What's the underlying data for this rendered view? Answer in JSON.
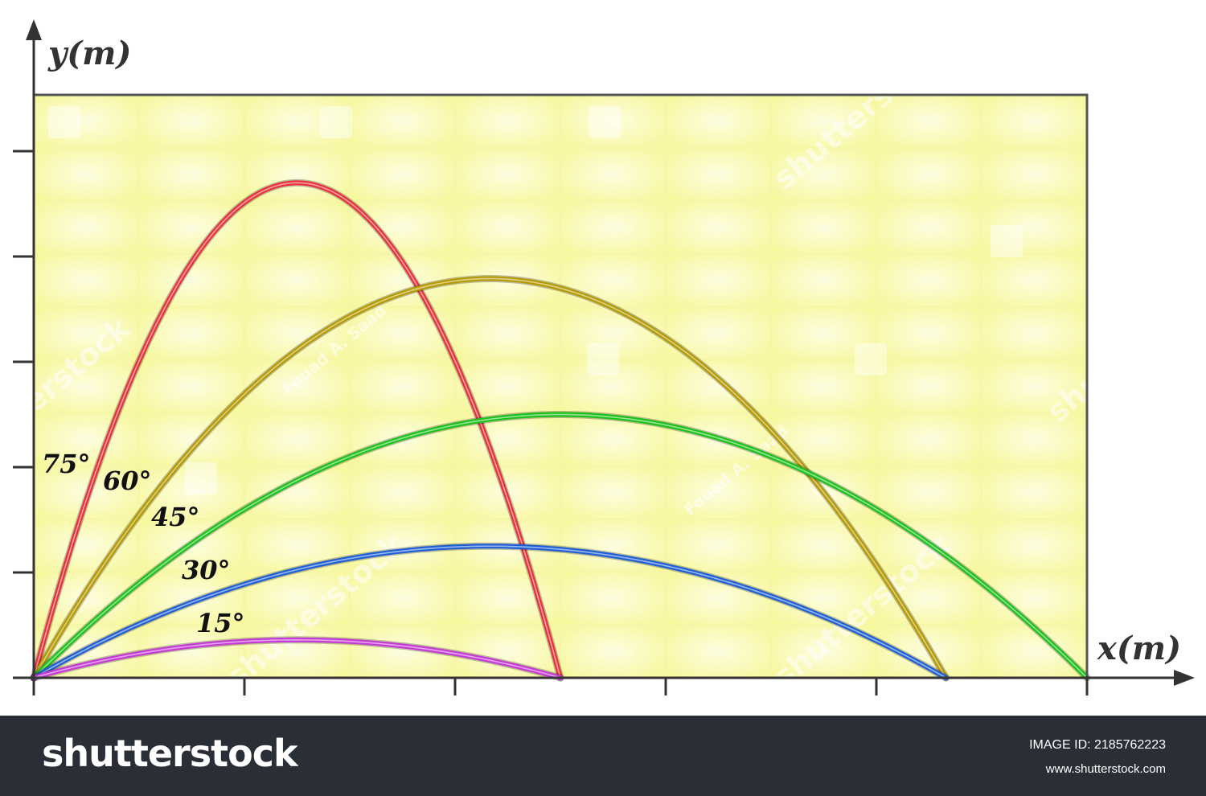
{
  "chart_data": {
    "type": "line",
    "x_axis_label": "x(m)",
    "y_axis_label": "y(m)",
    "xlim": [
      0,
      5
    ],
    "ylim": [
      0,
      5.5
    ],
    "x_ticks": [
      0,
      1,
      2,
      3,
      4,
      5
    ],
    "y_ticks": [
      0,
      1,
      2,
      3,
      4,
      5
    ],
    "tick_labels_shown": false,
    "background": "yellow tiled grid",
    "series": [
      {
        "name": "75°",
        "color": "#e8313a",
        "launch_angle_deg": 75,
        "range": 2.5,
        "peak_x": 1.25,
        "peak_y": 4.7
      },
      {
        "name": "60°",
        "color": "#b59a00",
        "launch_angle_deg": 60,
        "range": 4.33,
        "peak_x": 2.17,
        "peak_y": 3.79
      },
      {
        "name": "45°",
        "color": "#1cc21c",
        "launch_angle_deg": 45,
        "range": 5.0,
        "peak_x": 2.5,
        "peak_y": 2.5
      },
      {
        "name": "30°",
        "color": "#1f5fd6",
        "launch_angle_deg": 30,
        "range": 4.33,
        "peak_x": 2.17,
        "peak_y": 1.25
      },
      {
        "name": "15°",
        "color": "#c53ad6",
        "launch_angle_deg": 15,
        "range": 2.5,
        "peak_x": 1.25,
        "peak_y": 0.36
      }
    ]
  },
  "watermarks": {
    "brand": "shutterstock",
    "author": "Fouad A. Saad"
  },
  "footer": {
    "logo": "shutterstock",
    "image_id": "IMAGE ID: 2185762223",
    "site": "www.shutterstock.com"
  }
}
